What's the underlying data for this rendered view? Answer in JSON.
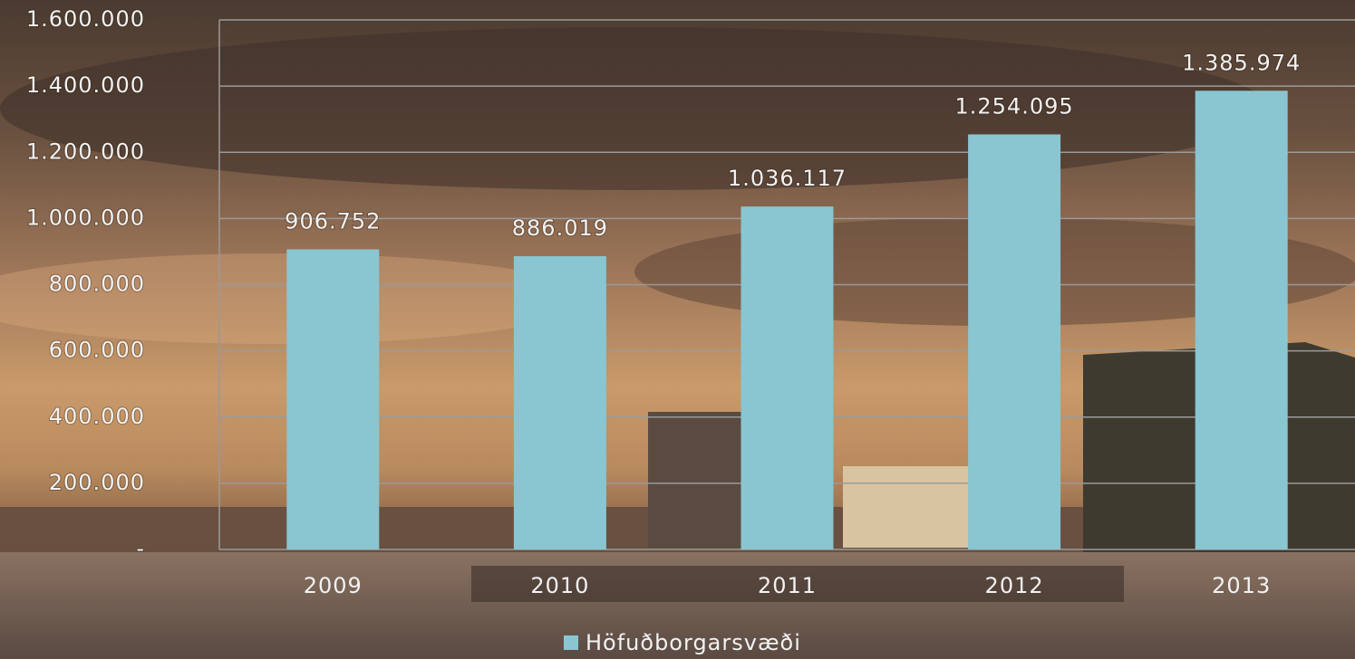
{
  "chart_data": {
    "type": "bar",
    "categories": [
      "2009",
      "2010",
      "2011",
      "2012",
      "2013"
    ],
    "series": [
      {
        "name": "Höfuðborgarsvæði",
        "color": "#89c6d1",
        "values": [
          906752,
          886019,
          1036117,
          1254095,
          1385974
        ],
        "value_labels": [
          "906.752",
          "886.019",
          "1.036.117",
          "1.254.095",
          "1.385.974"
        ]
      }
    ],
    "ylim": [
      0,
      1600000
    ],
    "yticks": [
      {
        "value": 0,
        "label": "-"
      },
      {
        "value": 200000,
        "label": "200.000"
      },
      {
        "value": 400000,
        "label": "400.000"
      },
      {
        "value": 600000,
        "label": "600.000"
      },
      {
        "value": 800000,
        "label": "800.000"
      },
      {
        "value": 1000000,
        "label": "1.000.000"
      },
      {
        "value": 1200000,
        "label": "1.200.000"
      },
      {
        "value": 1400000,
        "label": "1.400.000"
      },
      {
        "value": 1600000,
        "label": "1.600.000"
      }
    ],
    "grid": true,
    "legend": "bottom"
  }
}
